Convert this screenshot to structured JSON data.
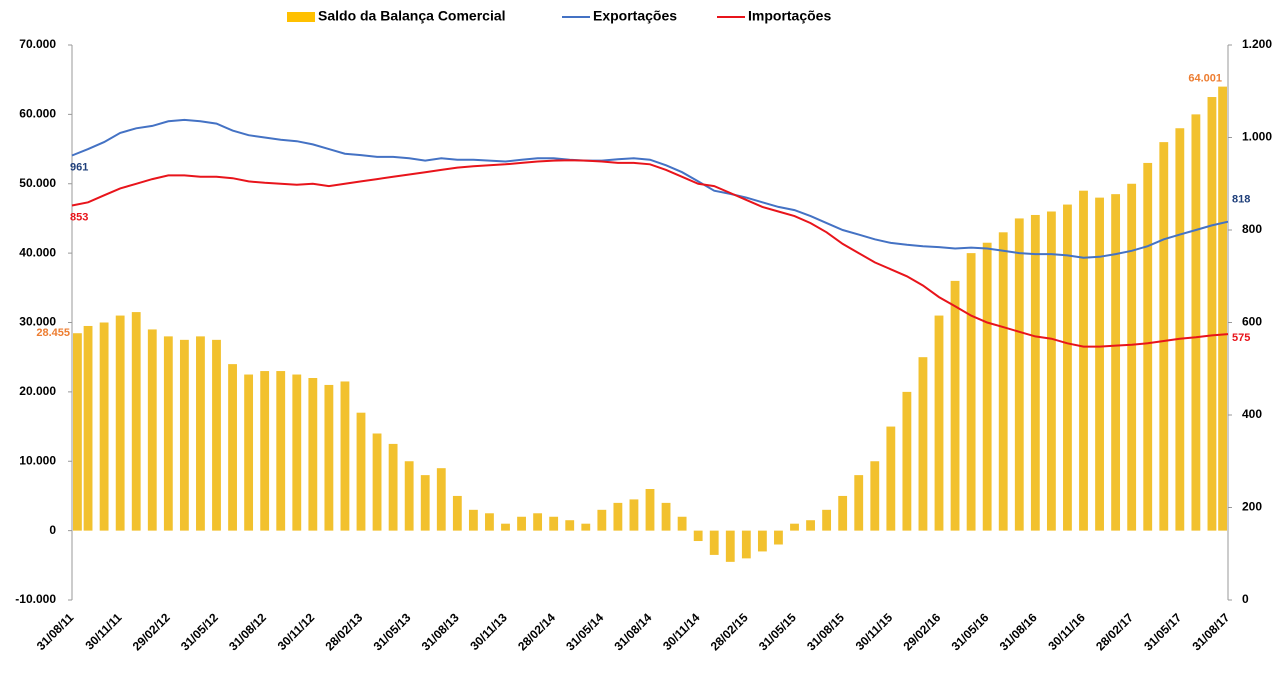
{
  "chart_data": {
    "type": "bar",
    "categories": [
      "31/08/11",
      null,
      null,
      "30/11/11",
      null,
      null,
      "29/02/12",
      null,
      null,
      "31/05/12",
      null,
      null,
      "31/08/12",
      null,
      null,
      "30/11/12",
      null,
      null,
      "28/02/13",
      null,
      null,
      "31/05/13",
      null,
      null,
      "31/08/13",
      null,
      null,
      "30/11/13",
      null,
      null,
      "28/02/14",
      null,
      null,
      "31/05/14",
      null,
      null,
      "31/08/14",
      null,
      null,
      "30/11/14",
      null,
      null,
      "28/02/15",
      null,
      null,
      "31/05/15",
      null,
      null,
      "31/08/15",
      null,
      null,
      "30/11/15",
      null,
      null,
      "29/02/16",
      null,
      null,
      "31/05/16",
      null,
      null,
      "31/08/16",
      null,
      null,
      "30/11/16",
      null,
      null,
      "28/02/17",
      null,
      null,
      "31/05/17",
      null,
      null,
      "31/08/17"
    ],
    "series": [
      {
        "name": "Saldo da Balança Comercial",
        "type": "bar",
        "axis": "y",
        "color": "#f2c12e",
        "label_color": "#ed7d31",
        "values": [
          28455,
          29500,
          30000,
          31000,
          31500,
          29000,
          28000,
          27500,
          28000,
          27500,
          24000,
          22500,
          23000,
          23000,
          22500,
          22000,
          21000,
          21500,
          17000,
          14000,
          12500,
          10000,
          8000,
          9000,
          5000,
          3000,
          2500,
          1000,
          2000,
          2500,
          2000,
          1500,
          1000,
          3000,
          4000,
          4500,
          6000,
          4000,
          2000,
          -1500,
          -3500,
          -4500,
          -4000,
          -3000,
          -2000,
          1000,
          1500,
          3000,
          5000,
          8000,
          10000,
          15000,
          20000,
          25000,
          31000,
          36000,
          40000,
          41500,
          43000,
          45000,
          45500,
          46000,
          47000,
          49000,
          48000,
          48500,
          50000,
          53000,
          56000,
          58000,
          60000,
          62500,
          64001
        ],
        "value_labels": [
          "28.455",
          null,
          null,
          null,
          null,
          null,
          null,
          null,
          null,
          null,
          null,
          null,
          null,
          null,
          null,
          null,
          null,
          null,
          null,
          null,
          null,
          null,
          null,
          null,
          null,
          null,
          null,
          null,
          null,
          null,
          null,
          null,
          null,
          null,
          null,
          null,
          null,
          null,
          null,
          null,
          null,
          null,
          null,
          null,
          null,
          null,
          null,
          null,
          null,
          null,
          null,
          null,
          null,
          null,
          null,
          null,
          null,
          null,
          null,
          null,
          null,
          null,
          null,
          null,
          null,
          null,
          null,
          null,
          null,
          null,
          null,
          null,
          "64.001"
        ]
      },
      {
        "name": "Exportações",
        "type": "line",
        "axis": "y2",
        "color": "#4472c4",
        "label_color": "#1f3f7a",
        "values": [
          961,
          975,
          990,
          1010,
          1020,
          1025,
          1035,
          1038,
          1035,
          1030,
          1015,
          1005,
          1000,
          995,
          992,
          985,
          975,
          965,
          962,
          958,
          958,
          955,
          950,
          955,
          952,
          952,
          950,
          948,
          952,
          955,
          955,
          952,
          950,
          950,
          953,
          955,
          952,
          940,
          925,
          905,
          885,
          878,
          870,
          860,
          850,
          843,
          830,
          815,
          800,
          790,
          780,
          772,
          768,
          765,
          763,
          760,
          762,
          760,
          755,
          750,
          748,
          748,
          745,
          740,
          742,
          748,
          755,
          765,
          780,
          790,
          800,
          810,
          818
        ]
      },
      {
        "name": "Importações",
        "type": "line",
        "axis": "y2",
        "color": "#e8141b",
        "label_color": "#e8141b",
        "values": [
          853,
          860,
          875,
          890,
          900,
          910,
          918,
          918,
          915,
          915,
          912,
          905,
          902,
          900,
          898,
          900,
          895,
          900,
          905,
          910,
          915,
          920,
          925,
          930,
          935,
          938,
          940,
          942,
          945,
          948,
          950,
          951,
          950,
          948,
          945,
          945,
          942,
          930,
          915,
          900,
          895,
          880,
          865,
          850,
          840,
          830,
          815,
          795,
          770,
          750,
          730,
          715,
          700,
          680,
          655,
          635,
          615,
          600,
          590,
          580,
          570,
          565,
          555,
          548,
          548,
          550,
          552,
          555,
          560,
          565,
          568,
          572,
          575
        ]
      }
    ],
    "ylim": [
      -10000,
      70000
    ],
    "yticks": [
      {
        "value": -10000,
        "label": "-10.000"
      },
      0,
      {
        "value": 10000,
        "label": "10.000"
      },
      {
        "value": 20000,
        "label": "20.000"
      },
      {
        "value": 30000,
        "label": "30.000"
      },
      {
        "value": 40000,
        "label": "40.000"
      },
      {
        "value": 50000,
        "label": "50.000"
      },
      {
        "value": 60000,
        "label": "60.000"
      },
      {
        "value": 70000,
        "label": "70.000"
      }
    ],
    "y2lim": [
      0,
      1200
    ],
    "y2ticks": [
      0,
      200,
      400,
      600,
      800,
      {
        "value": 1000,
        "label": "1.000"
      },
      {
        "value": 1200,
        "label": "1.200"
      }
    ],
    "grid": false,
    "legend": "top"
  }
}
